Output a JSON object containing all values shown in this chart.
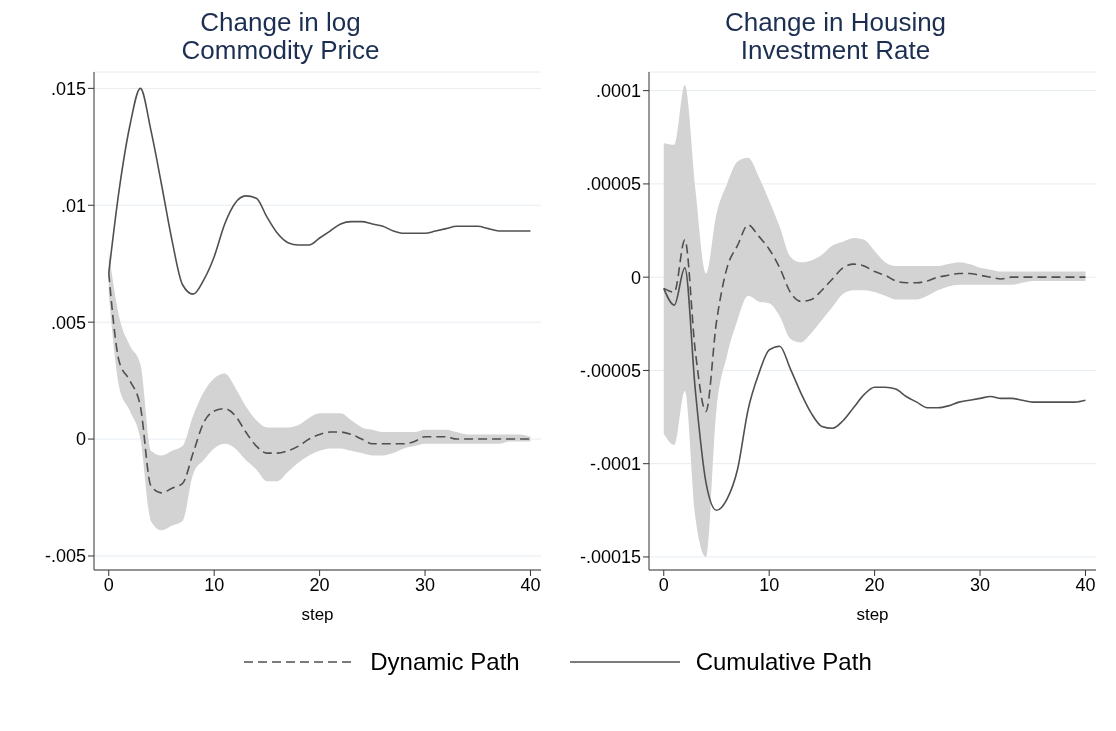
{
  "chart_data": [
    {
      "type": "line",
      "title": "Change in log Commodity Price",
      "xlabel": "step",
      "legend": "bottom",
      "grid": "y",
      "x": [
        0,
        1,
        2,
        3,
        4,
        5,
        6,
        7,
        8,
        9,
        10,
        11,
        12,
        13,
        14,
        15,
        16,
        17,
        18,
        19,
        20,
        21,
        22,
        23,
        24,
        25,
        26,
        27,
        28,
        29,
        30,
        31,
        32,
        33,
        34,
        35,
        36,
        37,
        38,
        39,
        40
      ],
      "xlim": [
        -1.4,
        41
      ],
      "xticks": [
        0,
        10,
        20,
        30,
        40
      ],
      "ylim": [
        -0.0056,
        0.0157
      ],
      "yticks": [
        {
          "value": -0.005,
          "label": "-.005"
        },
        {
          "value": 0,
          "label": "0"
        },
        {
          "value": 0.005,
          "label": ".005"
        },
        {
          "value": 0.01,
          "label": ".01"
        },
        {
          "value": 0.015,
          "label": ".015"
        }
      ],
      "series": [
        {
          "name": "Dynamic Path",
          "color": "#505050",
          "line_style": "dashed",
          "values": [
            0.0071,
            0.0033,
            0.0025,
            0.0014,
            -0.002,
            -0.0023,
            -0.0021,
            -0.0019,
            -0.0006,
            0.0007,
            0.0012,
            0.0013,
            0.001,
            0.0003,
            -0.0003,
            -0.0006,
            -0.0006,
            -0.0005,
            -0.0003,
            0,
            0.0002,
            0.0003,
            0.0003,
            0.0002,
            0,
            -0.0002,
            -0.0002,
            -0.0002,
            -0.0002,
            -0.0001,
            0.0001,
            0.0001,
            0.0001,
            0,
            0,
            0,
            0,
            0,
            0,
            0,
            0
          ],
          "lower": [
            0.0062,
            0.0022,
            0.0012,
            0,
            -0.0035,
            -0.0039,
            -0.0037,
            -0.0035,
            -0.0015,
            -0.0009,
            -0.0004,
            -0.0002,
            -0.0004,
            -0.0009,
            -0.0013,
            -0.0018,
            -0.0018,
            -0.0014,
            -0.001,
            -0.0007,
            -0.0005,
            -0.0004,
            -0.0004,
            -0.0005,
            -0.0006,
            -0.0007,
            -0.0007,
            -0.0006,
            -0.0004,
            -0.0003,
            -0.0002,
            -0.0002,
            -0.0002,
            -0.0002,
            -0.0002,
            -0.0002,
            -0.0002,
            -0.0002,
            -0.0001,
            -0.0001,
            -0.0001
          ],
          "upper": [
            0.008,
            0.0052,
            0.004,
            0.0032,
            -0.0005,
            -0.0007,
            -0.0005,
            -0.0003,
            0.001,
            0.002,
            0.0026,
            0.0028,
            0.0022,
            0.0014,
            0.0008,
            0.0005,
            0.0005,
            0.0005,
            0.0006,
            0.0009,
            0.0011,
            0.0011,
            0.0011,
            0.0008,
            0.0005,
            0.0004,
            0.0003,
            0.0003,
            0.0003,
            0.0003,
            0.0004,
            0.0004,
            0.0004,
            0.0003,
            0.0002,
            0.0002,
            0.0002,
            0.0002,
            0.0002,
            0.0002,
            0.0001
          ]
        },
        {
          "name": "Cumulative Path",
          "color": "#505050",
          "line_style": "solid",
          "values": [
            0.0071,
            0.0107,
            0.0134,
            0.015,
            0.0132,
            0.0109,
            0.0085,
            0.0066,
            0.0062,
            0.0068,
            0.0078,
            0.0092,
            0.0101,
            0.0104,
            0.0103,
            0.0095,
            0.0088,
            0.0084,
            0.0083,
            0.0083,
            0.0086,
            0.0089,
            0.0092,
            0.0093,
            0.0093,
            0.0092,
            0.0091,
            0.0089,
            0.0088,
            0.0088,
            0.0088,
            0.0089,
            0.009,
            0.0091,
            0.0091,
            0.0091,
            0.009,
            0.0089,
            0.0089,
            0.0089,
            0.0089
          ]
        }
      ]
    },
    {
      "type": "line",
      "title": "Change in Housing Investment Rate",
      "xlabel": "step",
      "grid": "y",
      "x": [
        0,
        1,
        2,
        3,
        4,
        5,
        6,
        7,
        8,
        9,
        10,
        11,
        12,
        13,
        14,
        15,
        16,
        17,
        18,
        19,
        20,
        21,
        22,
        23,
        24,
        25,
        26,
        27,
        28,
        29,
        30,
        31,
        32,
        33,
        34,
        35,
        36,
        37,
        38,
        39,
        40
      ],
      "xlim": [
        -1.4,
        41
      ],
      "xticks": [
        0,
        10,
        20,
        30,
        40
      ],
      "ylim": [
        -0.000157,
        0.00011
      ],
      "yticks": [
        {
          "value": -0.00015,
          "label": "-.00015"
        },
        {
          "value": -0.0001,
          "label": "-.0001"
        },
        {
          "value": -5e-05,
          "label": "-.00005"
        },
        {
          "value": 0,
          "label": "0"
        },
        {
          "value": 5e-05,
          "label": ".00005"
        },
        {
          "value": 0.0001,
          "label": ".0001"
        }
      ],
      "series": [
        {
          "color": "#505050",
          "line_style": "dashed",
          "values": [
            -6e-06,
            -8e-06,
            2e-05,
            -4e-05,
            -7.2e-05,
            -2.4e-05,
            5e-06,
            1.7e-05,
            2.8e-05,
            2.2e-05,
            1.5e-05,
            5e-06,
            -8e-06,
            -1.3e-05,
            -1.2e-05,
            -7e-06,
            -1e-06,
            5e-06,
            7e-06,
            6e-06,
            3e-06,
            1e-06,
            -2e-06,
            -3e-06,
            -3e-06,
            -2e-06,
            0,
            1e-06,
            2e-06,
            2e-06,
            1e-06,
            0,
            -1e-06,
            0,
            0,
            0,
            0,
            0,
            0,
            0,
            0
          ],
          "lower": [
            -8.4e-05,
            -9e-05,
            -6.1e-05,
            -0.000129,
            -0.00015,
            -7.1e-05,
            -4.2e-05,
            -2.3e-05,
            -1e-05,
            -1.3e-05,
            -1.4e-05,
            -2.1e-05,
            -3.3e-05,
            -3.5e-05,
            -3e-05,
            -2.3e-05,
            -1.6e-05,
            -9e-06,
            -7e-06,
            -7e-06,
            -8e-06,
            -1e-05,
            -1.2e-05,
            -1.2e-05,
            -1.2e-05,
            -1e-05,
            -7e-06,
            -5e-06,
            -4e-06,
            -4e-06,
            -4e-06,
            -4e-06,
            -4e-06,
            -4e-06,
            -3e-06,
            -2e-06,
            -2e-06,
            -2e-06,
            -2e-06,
            -2e-06,
            -2e-06
          ],
          "upper": [
            7.2e-05,
            7.1e-05,
            0.000103,
            4.7e-05,
            2e-06,
            3.4e-05,
            5e-05,
            6.2e-05,
            6.4e-05,
            5.4e-05,
            4.1e-05,
            2.7e-05,
            1.1e-05,
            8e-06,
            9e-06,
            1.2e-05,
            1.7e-05,
            1.9e-05,
            2.1e-05,
            2e-05,
            1.4e-05,
            8e-06,
            6e-06,
            6e-06,
            6e-06,
            6e-06,
            6e-06,
            7e-06,
            8e-06,
            7e-06,
            5e-06,
            4e-06,
            3e-06,
            3e-06,
            3e-06,
            3e-06,
            3e-06,
            3e-06,
            3e-06,
            3e-06,
            3e-06
          ]
        },
        {
          "color": "#505050",
          "line_style": "solid",
          "values": [
            -6e-06,
            -1.5e-05,
            5e-06,
            -6.1e-05,
            -0.00011,
            -0.000125,
            -0.000119,
            -0.000103,
            -7.1e-05,
            -5.2e-05,
            -3.9e-05,
            -3.7e-05,
            -4.9e-05,
            -6.2e-05,
            -7.3e-05,
            -8e-05,
            -8.1e-05,
            -7.7e-05,
            -7e-05,
            -6.3e-05,
            -5.9e-05,
            -5.9e-05,
            -6e-05,
            -6.4e-05,
            -6.7e-05,
            -7e-05,
            -7e-05,
            -6.9e-05,
            -6.7e-05,
            -6.6e-05,
            -6.5e-05,
            -6.4e-05,
            -6.5e-05,
            -6.5e-05,
            -6.6e-05,
            -6.7e-05,
            -6.7e-05,
            -6.7e-05,
            -6.7e-05,
            -6.7e-05,
            -6.6e-05
          ]
        }
      ]
    }
  ]
}
